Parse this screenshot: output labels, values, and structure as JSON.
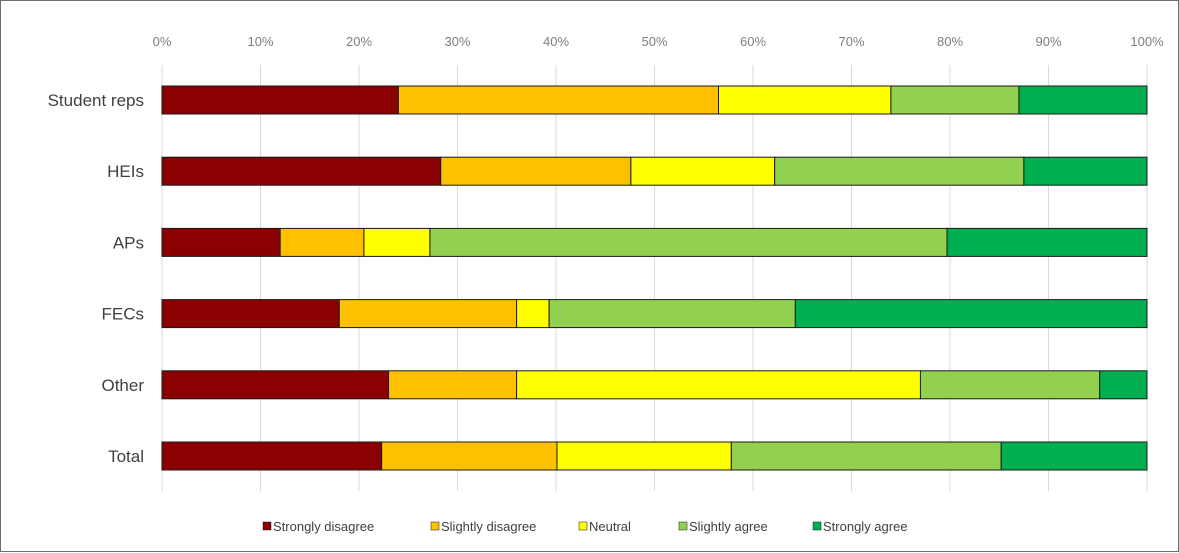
{
  "chart_data": {
    "type": "bar",
    "orientation": "horizontal",
    "stacked": "percent",
    "title": "",
    "xlabel": "",
    "ylabel": "",
    "categories": [
      "Student reps",
      "HEIs",
      "APs",
      "FECs",
      "Other",
      "Total"
    ],
    "x_ticks": [
      "0%",
      "10%",
      "20%",
      "30%",
      "40%",
      "50%",
      "60%",
      "70%",
      "80%",
      "90%",
      "100%"
    ],
    "xlim": [
      0,
      100
    ],
    "grid": "vertical",
    "legend": "bottom",
    "series": [
      {
        "name": "Strongly disagree",
        "color": "#8b0000",
        "values": [
          24,
          28.3,
          12,
          18,
          23,
          22.3
        ]
      },
      {
        "name": "Slightly disagree",
        "color": "#ffc000",
        "values": [
          32.5,
          19.3,
          8.5,
          18,
          13,
          17.8
        ]
      },
      {
        "name": "Neutral",
        "color": "#ffff00",
        "values": [
          17.5,
          14.6,
          6.7,
          3.3,
          41,
          17.7
        ]
      },
      {
        "name": "Slightly agree",
        "color": "#92d050",
        "values": [
          13,
          25.3,
          52.5,
          25,
          18.2,
          27.4
        ]
      },
      {
        "name": "Strongly agree",
        "color": "#00b050",
        "values": [
          13,
          12.5,
          20.3,
          35.7,
          4.8,
          14.8
        ]
      }
    ]
  }
}
